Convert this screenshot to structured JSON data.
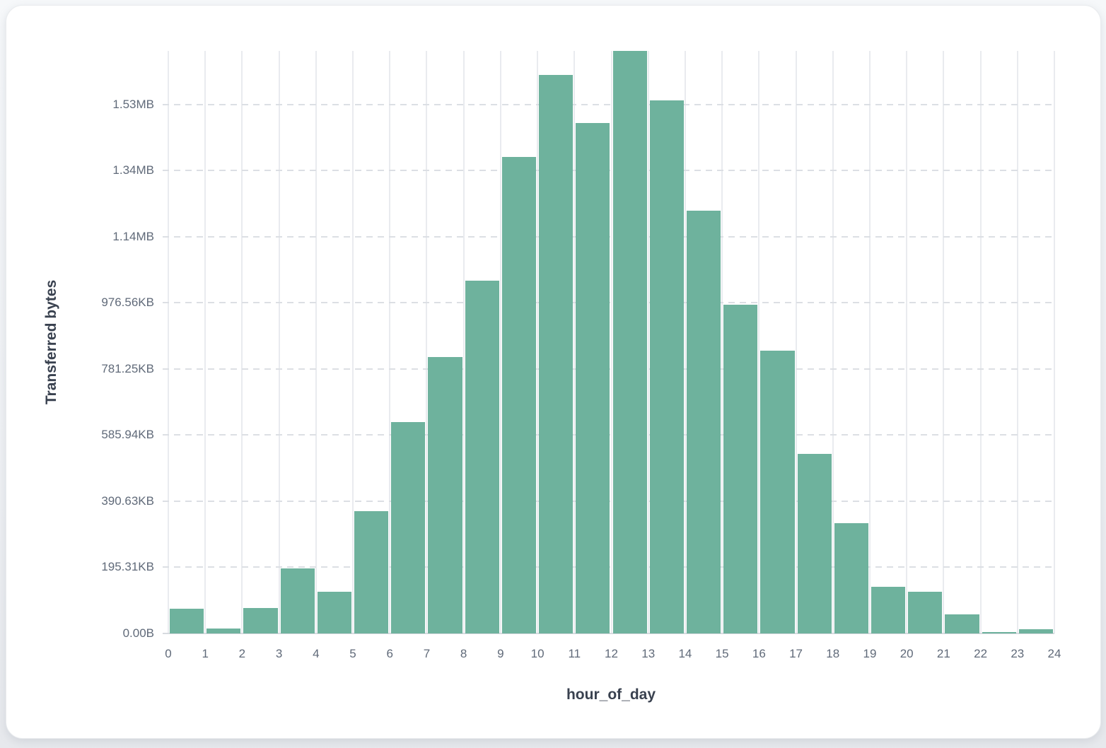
{
  "page": {
    "background_color": "#eff1f4",
    "card_background_color": "#ffffff"
  },
  "chart_data": {
    "type": "bar",
    "title": "",
    "xlabel": "hour_of_day",
    "ylabel": "Transferred bytes",
    "bar_color": "#6eb29d",
    "grid": {
      "vertical": "solid",
      "horizontal": "dashed",
      "legend": "none"
    },
    "xlim": [
      0,
      24
    ],
    "ylim_bytes": [
      0,
      1762000
    ],
    "x_bins": [
      0,
      1,
      2,
      3,
      4,
      5,
      6,
      7,
      8,
      9,
      10,
      11,
      12,
      13,
      14,
      15,
      16,
      17,
      18,
      19,
      20,
      21,
      22,
      23
    ],
    "values_bytes": [
      75000,
      16000,
      77000,
      196000,
      126000,
      370000,
      640000,
      836000,
      1067000,
      1442000,
      1690000,
      1544000,
      1762000,
      1613000,
      1279000,
      995000,
      856000,
      544000,
      334000,
      141000,
      126000,
      58000,
      4000,
      13000
    ],
    "x_ticks": [
      "0",
      "1",
      "2",
      "3",
      "4",
      "5",
      "6",
      "7",
      "8",
      "9",
      "10",
      "11",
      "12",
      "13",
      "14",
      "15",
      "16",
      "17",
      "18",
      "19",
      "20",
      "21",
      "22",
      "23",
      "24"
    ],
    "y_ticks": [
      {
        "label": "0.00B",
        "bytes": 0
      },
      {
        "label": "195.31KB",
        "bytes": 200000
      },
      {
        "label": "390.63KB",
        "bytes": 400000
      },
      {
        "label": "585.94KB",
        "bytes": 600000
      },
      {
        "label": "781.25KB",
        "bytes": 800000
      },
      {
        "label": "976.56KB",
        "bytes": 1000000
      },
      {
        "label": "1.14MB",
        "bytes": 1200000
      },
      {
        "label": "1.34MB",
        "bytes": 1400000
      },
      {
        "label": "1.53MB",
        "bytes": 1600000
      }
    ]
  }
}
